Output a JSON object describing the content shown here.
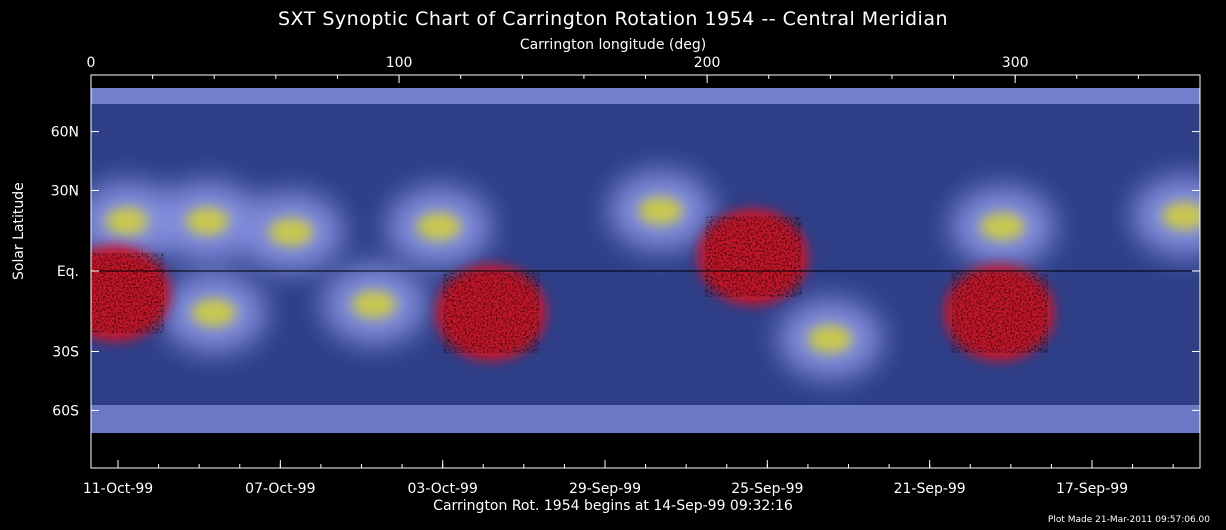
{
  "chart_data": {
    "type": "heatmap",
    "title": "SXT Synoptic Chart of Carrington Rotation 1954 -- Central Meridian",
    "top_axis": {
      "label": "Carrington longitude (deg)",
      "range": [
        0,
        360
      ],
      "ticks": [
        0,
        100,
        200,
        300
      ],
      "tick_labels": [
        "0",
        "100",
        "200",
        "300"
      ]
    },
    "left_axis": {
      "label": "Solar Latitude",
      "ticks": [
        60,
        30,
        0,
        -30,
        -60
      ],
      "tick_labels": [
        "60N",
        "30N",
        "Eq.",
        "30S",
        "60S"
      ]
    },
    "bottom_axis": {
      "tick_labels": [
        "11-Oct-99",
        "07-Oct-99",
        "03-Oct-99",
        "29-Sep-99",
        "25-Sep-99",
        "21-Sep-99",
        "17-Sep-99"
      ],
      "label": "Carrington Rot. 1954 begins at 14-Sep-99 09:32:16"
    },
    "colors": {
      "background": "#000000",
      "quiet": "#2e3f88",
      "loops": "#8c96e6",
      "bright": "#c8c850",
      "hole": "#c8142a"
    },
    "features": [
      {
        "type": "active_region",
        "lon": 12,
        "lat": 18
      },
      {
        "type": "active_region",
        "lon": 38,
        "lat": 18
      },
      {
        "type": "active_region",
        "lon": 65,
        "lat": 14
      },
      {
        "type": "active_region",
        "lon": 113,
        "lat": 16
      },
      {
        "type": "active_region",
        "lon": 185,
        "lat": 22
      },
      {
        "type": "active_region",
        "lon": 296,
        "lat": 16
      },
      {
        "type": "active_region",
        "lon": 355,
        "lat": 20
      },
      {
        "type": "active_region",
        "lon": 40,
        "lat": -15
      },
      {
        "type": "active_region",
        "lon": 92,
        "lat": -12
      },
      {
        "type": "active_region",
        "lon": 240,
        "lat": -25
      },
      {
        "type": "coronal_hole",
        "lon": 8,
        "lat": -8
      },
      {
        "type": "coronal_hole",
        "lon": 130,
        "lat": -15
      },
      {
        "type": "coronal_hole",
        "lon": 215,
        "lat": 5
      },
      {
        "type": "coronal_hole",
        "lon": 295,
        "lat": -15
      }
    ],
    "footer": "Plot Made 21-Mar-2011 09:57:06.00"
  }
}
